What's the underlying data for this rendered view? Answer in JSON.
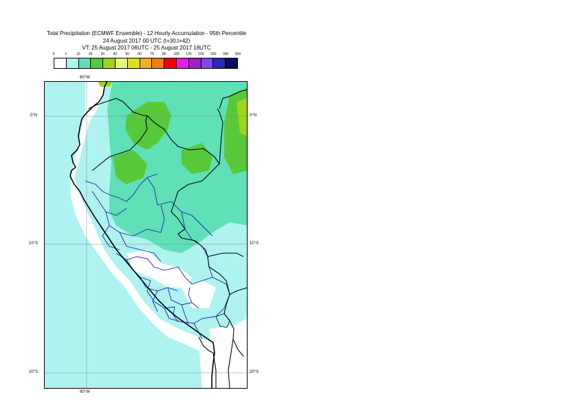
{
  "title": {
    "line1": "Total Precipitation (ECMWF Ensemble) - 12 Hourly Accumulation - 95th Percentile",
    "line2": "24 August 2017 00 UTC (t+30,t+42)",
    "line3": "VT: 25 August 2017 06UTC - 25 August 2017 18UTC"
  },
  "legend": {
    "ticks": [
      "0",
      "1",
      "10",
      "20",
      "30",
      "40",
      "50",
      "60",
      "70",
      "80",
      "100",
      "125",
      "150",
      "200",
      "300",
      "500"
    ],
    "colors": [
      "#ffffff",
      "#aef3f0",
      "#5fe0b6",
      "#58c83b",
      "#9ed61b",
      "#e5f87a",
      "#e0e021",
      "#f5b020",
      "#f17c14",
      "#f00000",
      "#e61ce6",
      "#a01fc8",
      "#7a4af0",
      "#2a2ab8",
      "#0c0c5c"
    ]
  },
  "map": {
    "lat_labels": [
      "0°N",
      "10°S",
      "20°S"
    ],
    "lon_label_top": "80°W",
    "lon_label_bottom": "80°W"
  }
}
